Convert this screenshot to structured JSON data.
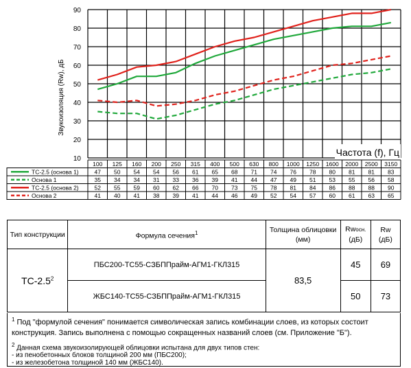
{
  "chart_data": {
    "type": "line",
    "xlabel": "Частота (f), Гц",
    "ylabel": "Звукоизоляция (Rw), дБ",
    "categories": [
      "100",
      "125",
      "160",
      "200",
      "250",
      "315",
      "400",
      "500",
      "630",
      "800",
      "1000",
      "1250",
      "1600",
      "2000",
      "2500",
      "3150"
    ],
    "ylim": [
      10,
      90
    ],
    "yticks": [
      "10",
      "20",
      "30",
      "40",
      "50",
      "60",
      "70",
      "80",
      "90"
    ],
    "grid": true,
    "series": [
      {
        "name": "ТС-2.5 (основа 1)",
        "color": "#1fa83a",
        "dashed": false,
        "values": [
          47,
          50,
          54,
          54,
          56,
          61,
          65,
          68,
          71,
          74,
          76,
          78,
          80,
          81,
          81,
          83
        ]
      },
      {
        "name": "Основа 1",
        "color": "#1fa83a",
        "dashed": true,
        "values": [
          35,
          34,
          34,
          31,
          33,
          36,
          39,
          41,
          44,
          47,
          49,
          51,
          53,
          55,
          56,
          58
        ]
      },
      {
        "name": "ТС-2.5 (основа 2)",
        "color": "#e0211b",
        "dashed": false,
        "values": [
          52,
          55,
          59,
          60,
          62,
          66,
          70,
          73,
          75,
          78,
          81,
          84,
          86,
          88,
          88,
          90
        ]
      },
      {
        "name": "Основа 2",
        "color": "#e0211b",
        "dashed": true,
        "values": [
          41,
          40,
          41,
          38,
          39,
          41,
          44,
          46,
          49,
          52,
          54,
          57,
          60,
          61,
          63,
          65
        ]
      }
    ]
  },
  "table": {
    "h_type": "Тип конструкции",
    "h_formula": "Формула сечения",
    "h_formula_sup": "1",
    "h_thickness": "Толщина облицовки (мм)",
    "h_rw_base": "Rw",
    "h_rw_base_sub": "осн.",
    "h_rw_base_unit": "(дБ)",
    "h_rw": "Rw",
    "h_rw_unit": "(дБ)",
    "type": "ТС-2.5",
    "type_sup": "2",
    "thickness": "83,5",
    "rows": [
      {
        "formula": "ПБС200-ТС55-СЗБППрайм-АГМ1-ГКЛ315",
        "rw_base": "45",
        "rw": "69"
      },
      {
        "formula": "ЖБС140-ТС55-СЗБППрайм-АГМ1-ГКЛ315",
        "rw_base": "50",
        "rw": "73"
      }
    ]
  },
  "notes": {
    "n1_mark": "1",
    "n1": "Под \"формулой сечения\" понимается символическая запись комбинации слоев, из которых состоит конструкция. Запись выполнена с помощью сокращенных названий слоев (см. Приложение \"Б\").",
    "n2_mark": "2",
    "n2_line1": "Данная схема звукоизолирующей облицовки испытана для двух типов стен:",
    "n2_line2": "- из пенобетонных блоков толщиной 200 мм (ПБС200);",
    "n2_line3": "- из железобетона толщиной 140 мм (ЖБС140)."
  }
}
